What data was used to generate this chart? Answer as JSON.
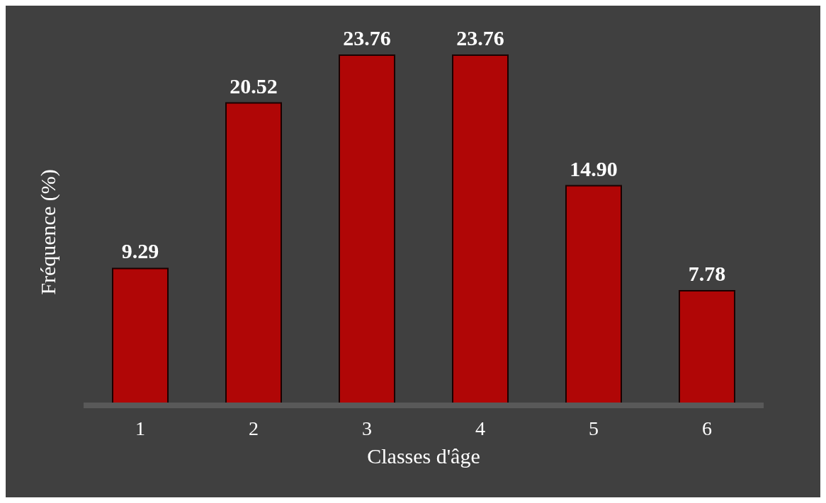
{
  "chart_data": {
    "type": "bar",
    "xlabel": "Classes d'âge",
    "ylabel": "Fréquence (%)",
    "categories": [
      "1",
      "2",
      "3",
      "4",
      "5",
      "6"
    ],
    "values": [
      9.29,
      20.52,
      23.76,
      23.76,
      14.9,
      7.78
    ],
    "value_labels": [
      "9.29",
      "20.52",
      "23.76",
      "23.76",
      "14.90",
      "7.78"
    ],
    "color": "#b00606",
    "data_labels": true,
    "grid": false,
    "legend": false
  }
}
